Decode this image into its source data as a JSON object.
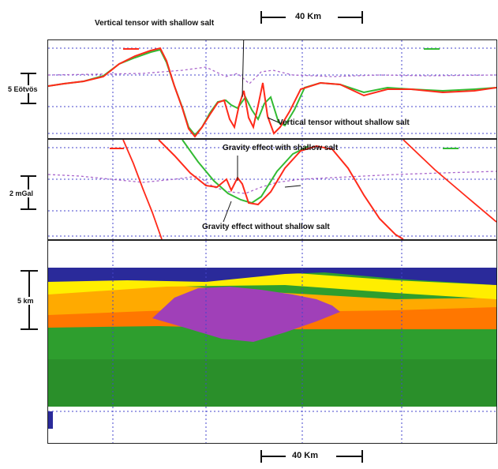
{
  "scale_bar_top": "40 Km",
  "scale_bar_bottom": "40 Km",
  "panel1": {
    "scale_label": "5 Eötvös",
    "annotation_top": "Vertical tensor with shallow salt",
    "annotation_bottom": "Vertical tensor without shallow salt"
  },
  "panel2": {
    "scale_label": "2 mGal",
    "annotation_top": "Gravity effect with shallow salt",
    "annotation_bottom": "Gravity effect without shallow salt"
  },
  "panel3": {
    "scale_label": "5 km"
  },
  "colors": {
    "with_salt": "#ff2a1a",
    "without_salt": "#33bb33",
    "dashed_ref": "#aa66cc",
    "grid": "#4444cc",
    "water": "#2a2a9a",
    "salt": "#a040b8",
    "yellow": "#ffee00",
    "orange_light": "#ffaa00",
    "orange": "#ff7700",
    "green": "#2e9e2e"
  }
}
